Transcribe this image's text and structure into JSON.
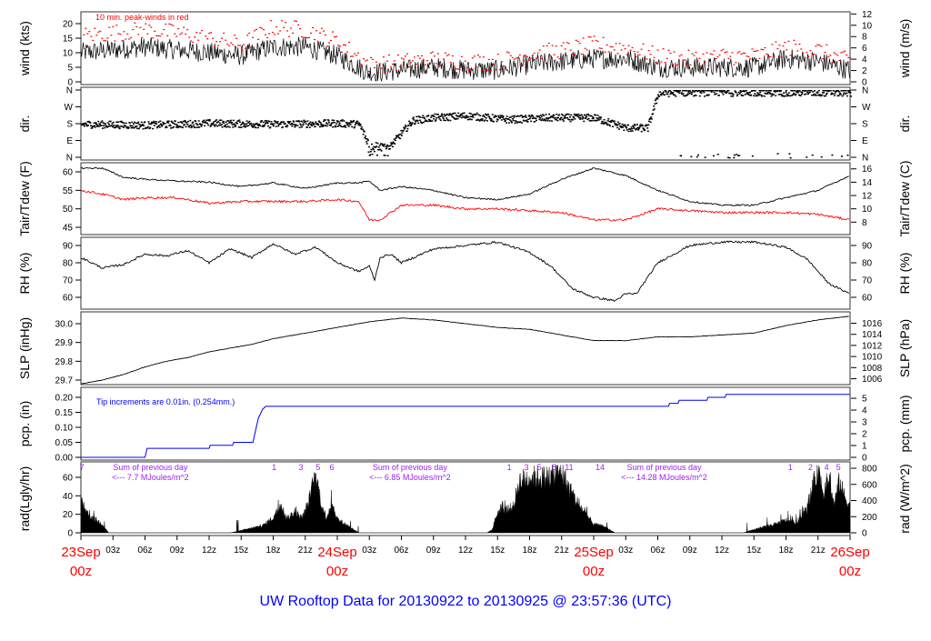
{
  "title": "UW Rooftop Data for 20130922  to  20130925 @ 23:57:36  (UTC)",
  "colors": {
    "red": "#ff0000",
    "blue": "#0000ff",
    "purple": "#a020f0",
    "title": "#0000ff"
  },
  "x_axis": {
    "range_hours": [
      0,
      72
    ],
    "hour_ticks": [
      "03z",
      "06z",
      "09z",
      "12z",
      "15z",
      "18z",
      "21z",
      "03z",
      "06z",
      "09z",
      "12z",
      "15z",
      "18z",
      "21z",
      "03z",
      "06z",
      "09z",
      "12z",
      "15z",
      "18z",
      "21z"
    ],
    "hour_tick_positions": [
      3,
      6,
      9,
      12,
      15,
      18,
      21,
      27,
      30,
      33,
      36,
      39,
      42,
      45,
      51,
      54,
      57,
      60,
      63,
      66,
      69
    ],
    "dates": [
      {
        "h": 0,
        "date": "23Sep",
        "time": "00z"
      },
      {
        "h": 24,
        "date": "24Sep",
        "time": "00z"
      },
      {
        "h": 48,
        "date": "25Sep",
        "time": "00z"
      },
      {
        "h": 72,
        "date": "26Sep",
        "time": "00z"
      }
    ]
  },
  "chart_data": [
    {
      "type": "line",
      "id": "wind",
      "ylabel": "wind (kts)",
      "ylabel_right": "wind (m/s)",
      "ylim": [
        0,
        20
      ],
      "yticks": [
        0,
        5,
        10,
        15,
        20
      ],
      "yticks_right": [
        0,
        2,
        4,
        6,
        8,
        10,
        12
      ],
      "annotation": "10 min. peak-winds in red",
      "x": [
        0,
        3,
        6,
        9,
        12,
        15,
        18,
        21,
        24,
        27,
        30,
        33,
        36,
        39,
        42,
        45,
        48,
        51,
        54,
        57,
        60,
        63,
        66,
        69,
        72
      ],
      "series": [
        {
          "name": "wind",
          "values": [
            10,
            11,
            12,
            11,
            10,
            9,
            12,
            12,
            9,
            3,
            4,
            5,
            4,
            4,
            6,
            7,
            8,
            8,
            5,
            5,
            5,
            5,
            8,
            7,
            4
          ]
        },
        {
          "name": "peak",
          "values": [
            16,
            17,
            18,
            17,
            15,
            13,
            19,
            18,
            14,
            6,
            7,
            8,
            7,
            7,
            10,
            11,
            13,
            12,
            9,
            8,
            9,
            9,
            12,
            11,
            7
          ]
        }
      ]
    },
    {
      "type": "scatter",
      "id": "dir",
      "ylabel": "dir.",
      "ylabel_right": "dir.",
      "ylim": [
        0,
        360
      ],
      "yticks": [
        "N",
        "E",
        "S",
        "W",
        "N"
      ],
      "x": [
        0,
        6,
        12,
        18,
        24,
        26,
        27,
        29,
        31,
        33,
        36,
        40,
        44,
        48,
        51,
        53,
        54,
        56,
        60,
        66,
        72
      ],
      "values": [
        180,
        175,
        185,
        180,
        185,
        180,
        60,
        70,
        200,
        215,
        225,
        205,
        215,
        215,
        160,
        160,
        345,
        350,
        350,
        350,
        350
      ]
    },
    {
      "type": "line",
      "id": "temp",
      "ylabel": "Tair/Tdew (F)",
      "ylabel_right": "Tair/Tdew (C)",
      "ylim": [
        45,
        60
      ],
      "yticks": [
        45,
        50,
        55,
        60
      ],
      "yticks_right": [
        8,
        10,
        12,
        14,
        16
      ],
      "x": [
        0,
        2,
        4,
        6,
        9,
        12,
        15,
        18,
        21,
        24,
        26,
        27,
        28,
        30,
        33,
        36,
        39,
        42,
        45,
        48,
        51,
        54,
        57,
        60,
        63,
        66,
        69,
        72
      ],
      "series": [
        {
          "name": "Tair",
          "values": [
            61,
            61,
            58.5,
            58,
            57.5,
            57.2,
            56,
            57,
            55.5,
            57,
            57,
            57.5,
            55,
            56,
            55,
            53,
            52.5,
            54,
            58,
            61,
            59,
            55,
            52,
            51,
            51,
            53,
            55,
            59
          ]
        },
        {
          "name": "Tdew",
          "values": [
            55,
            54,
            52.5,
            53,
            53,
            51.5,
            52,
            52,
            52,
            52.5,
            52,
            47,
            47,
            51,
            51,
            50,
            50,
            49.5,
            49,
            47,
            47,
            50,
            49.5,
            49,
            49,
            49,
            48.5,
            47
          ]
        }
      ]
    },
    {
      "type": "line",
      "id": "rh",
      "ylabel": "RH (%)",
      "ylabel_right": "RH (%)",
      "ylim": [
        60,
        90
      ],
      "yticks": [
        60,
        70,
        80,
        90
      ],
      "x": [
        0,
        2,
        4,
        6,
        8,
        10,
        12,
        14,
        16,
        18,
        20,
        22,
        24,
        26,
        27,
        27.5,
        28,
        29,
        30,
        33,
        36,
        39,
        42,
        44,
        46,
        48,
        50,
        51,
        52,
        54,
        57,
        60,
        63,
        66,
        68,
        70,
        72
      ],
      "values": [
        83,
        77,
        79,
        85,
        84,
        87,
        80,
        88,
        83,
        91,
        85,
        89,
        80,
        75,
        78,
        70,
        83,
        85,
        80,
        88,
        90,
        92,
        86,
        78,
        65,
        60,
        58,
        62,
        62,
        80,
        90,
        92,
        92,
        89,
        82,
        68,
        62
      ]
    },
    {
      "type": "line",
      "id": "slp",
      "ylabel": "SLP (inHg)",
      "ylabel_right": "SLP (hPa)",
      "ylim": [
        29.7,
        30.0
      ],
      "yticks": [
        29.7,
        29.8,
        29.9,
        30.0
      ],
      "yticks_right": [
        1006,
        1008,
        1010,
        1012,
        1014,
        1016
      ],
      "x": [
        0,
        2,
        4,
        6,
        8,
        10,
        12,
        14,
        16,
        18,
        20,
        22,
        24,
        27,
        30,
        33,
        36,
        39,
        42,
        45,
        48,
        51,
        54,
        57,
        60,
        63,
        66,
        69,
        72
      ],
      "values": [
        29.68,
        29.7,
        29.73,
        29.77,
        29.8,
        29.82,
        29.85,
        29.87,
        29.89,
        29.92,
        29.94,
        29.96,
        29.98,
        30.01,
        30.03,
        30.02,
        30.0,
        29.98,
        29.97,
        29.94,
        29.91,
        29.91,
        29.93,
        29.93,
        29.94,
        29.95,
        29.99,
        30.02,
        30.04
      ]
    },
    {
      "type": "line",
      "id": "pcp",
      "ylabel": "pcp. (in)",
      "ylabel_right": "pcp. (mm)",
      "ylim": [
        0,
        0.2
      ],
      "yticks": [
        0.0,
        0.05,
        0.1,
        0.15,
        0.2
      ],
      "yticks_right": [
        0,
        1,
        2,
        3,
        4,
        5
      ],
      "annotation": "Tip increments are 0.01in. (0.254mm.)",
      "x": [
        0,
        6,
        6.2,
        12,
        12.1,
        14.2,
        14.3,
        16.1,
        16.6,
        17.0,
        17.3,
        55,
        55.1,
        55.9,
        56,
        58.6,
        58.7,
        60.3,
        60.4,
        72
      ],
      "values": [
        0,
        0,
        0.03,
        0.03,
        0.04,
        0.04,
        0.05,
        0.05,
        0.13,
        0.16,
        0.17,
        0.17,
        0.18,
        0.18,
        0.19,
        0.19,
        0.2,
        0.2,
        0.21,
        0.21
      ]
    },
    {
      "type": "area",
      "id": "rad",
      "ylabel": "rad(Lgly/hr)",
      "ylabel_right": "rad (W/m^2)",
      "ylim_left": [
        0,
        60
      ],
      "yticks": [
        0,
        20,
        40,
        60
      ],
      "yticks_right": [
        0,
        200,
        400,
        600,
        800
      ],
      "x": [
        0,
        0.5,
        1,
        2,
        2.6,
        14,
        15,
        16,
        17,
        18,
        18.7,
        19.3,
        20,
        20.7,
        21.3,
        21.8,
        22.2,
        22.6,
        23,
        23.5,
        24,
        25,
        26,
        38,
        38.5,
        39,
        40,
        40.5,
        41,
        42,
        43,
        44,
        45,
        45.5,
        46,
        46.5,
        47,
        48,
        49,
        50,
        62,
        63,
        64,
        65,
        66,
        67,
        67.5,
        68,
        69,
        69.5,
        70,
        70.5,
        71,
        71.5,
        72
      ],
      "values": [
        420,
        240,
        200,
        110,
        0,
        0,
        30,
        60,
        90,
        190,
        350,
        180,
        260,
        180,
        380,
        650,
        600,
        300,
        200,
        380,
        170,
        90,
        0,
        0,
        40,
        260,
        300,
        330,
        650,
        700,
        700,
        700,
        780,
        620,
        480,
        380,
        280,
        110,
        80,
        0,
        0,
        40,
        80,
        110,
        160,
        130,
        220,
        300,
        830,
        500,
        700,
        350,
        650,
        450,
        350
      ],
      "day_markers": [
        {
          "h": 0.1,
          "label": "7"
        },
        {
          "h": 18.1,
          "label": "1"
        },
        {
          "h": 20.6,
          "label": "3"
        },
        {
          "h": 22.2,
          "label": "5"
        },
        {
          "h": 23.5,
          "label": "6"
        },
        {
          "h": 40.1,
          "label": "1"
        },
        {
          "h": 41.7,
          "label": "3"
        },
        {
          "h": 42.9,
          "label": "5"
        },
        {
          "h": 44.3,
          "label": "8"
        },
        {
          "h": 45.7,
          "label": "11"
        },
        {
          "h": 48.6,
          "label": "14"
        },
        {
          "h": 66.4,
          "label": "1"
        },
        {
          "h": 68.3,
          "label": "2"
        },
        {
          "h": 69.8,
          "label": "4"
        },
        {
          "h": 70.9,
          "label": "5"
        }
      ],
      "sums": [
        {
          "h": 6.5,
          "line1": "Sum of previous day",
          "line2": "<--- 7.7 MJoules/m^2"
        },
        {
          "h": 30.8,
          "line1": "Sum of previous day",
          "line2": "<--- 6.85 MJoules/m^2"
        },
        {
          "h": 54.6,
          "line1": "Sum of previous day",
          "line2": "<--- 14.28 MJoules/m^2"
        }
      ]
    }
  ]
}
